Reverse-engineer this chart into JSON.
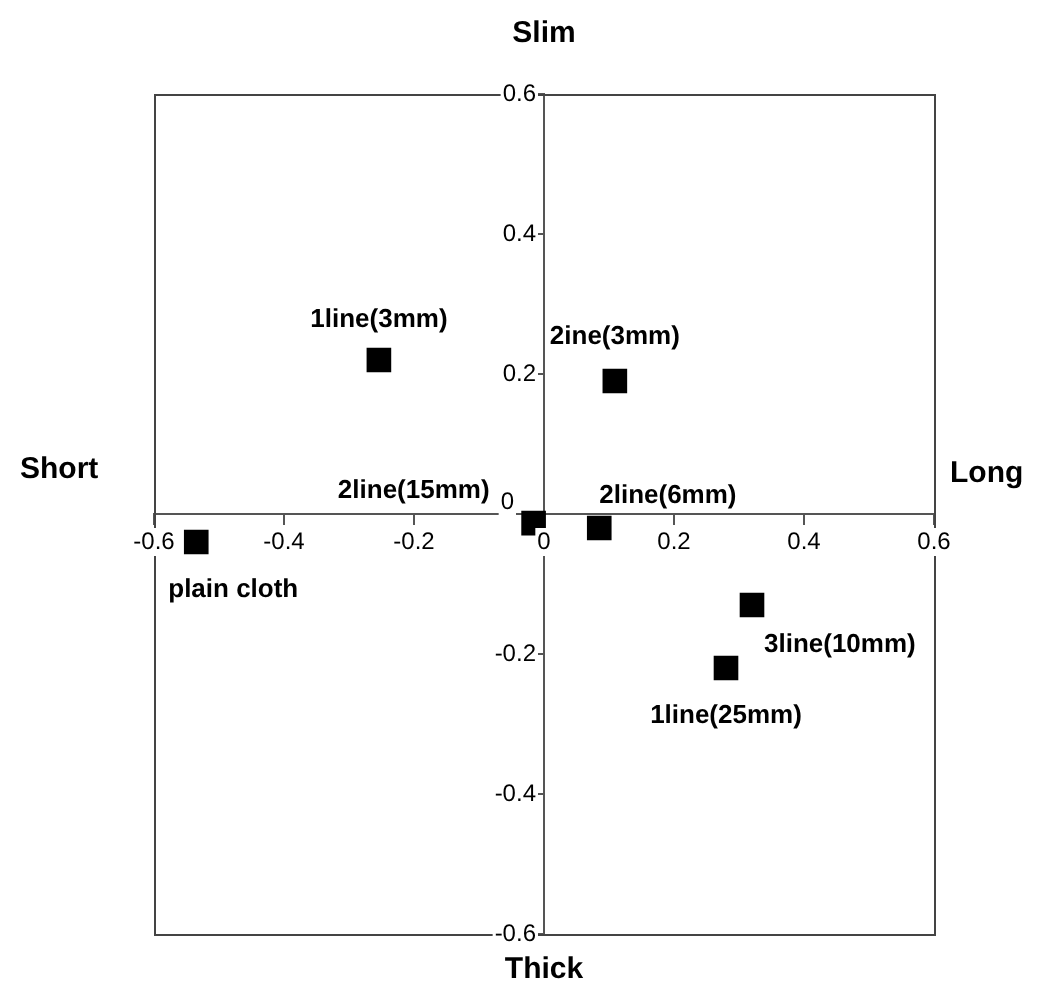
{
  "chart_data": {
    "type": "scatter",
    "title": "Slim",
    "xlabel": "Thick",
    "ylabel": "Short",
    "y2label": "Long",
    "x": [
      -0.535,
      -0.254,
      0.109,
      -0.016,
      0.085,
      0.32,
      0.28
    ],
    "values": [
      -0.04,
      0.22,
      0.19,
      -0.013,
      -0.02,
      -0.13,
      -0.22
    ],
    "color": "#000000",
    "marker": "square",
    "grid": false,
    "legend": false,
    "xlim": [
      -0.6,
      0.6
    ],
    "ylim": [
      -0.6,
      0.6
    ],
    "xticks": [
      -0.6,
      -0.4,
      -0.2,
      0,
      0.2,
      0.4,
      0.6
    ],
    "yticks": [
      -0.6,
      -0.4,
      -0.2,
      0,
      0.2,
      0.4,
      0.6
    ],
    "annotations": [
      {
        "text": "plain cloth",
        "x": -0.535,
        "y": -0.04
      },
      {
        "text": "1line(3mm)",
        "x": -0.254,
        "y": 0.22
      },
      {
        "text": "2ine(3mm)",
        "x": 0.109,
        "y": 0.19
      },
      {
        "text": "2line(15mm)",
        "x": -0.016,
        "y": -0.013
      },
      {
        "text": "2line(6mm)",
        "x": 0.085,
        "y": -0.02
      },
      {
        "text": "3line(10mm)",
        "x": 0.32,
        "y": -0.13
      },
      {
        "text": "1line(25mm)",
        "x": 0.28,
        "y": -0.22
      }
    ]
  }
}
